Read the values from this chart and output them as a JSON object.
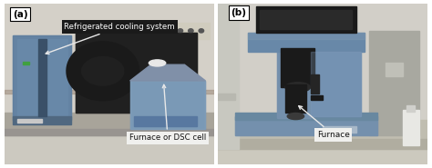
{
  "figsize": [
    4.74,
    1.85
  ],
  "dpi": 100,
  "bg_color": "#ffffff",
  "wall_color_a": "#d8d4cc",
  "floor_color_a": "#b8b4a8",
  "wall_color_b": "#d0cdc8",
  "floor_color_b": "#c8c4b8",
  "blue_device": "#6e84a0",
  "blue_device_dark": "#4a6080",
  "black_box": "#1a1a1a",
  "black_box2": "#252525",
  "label_a": "(a)",
  "label_b": "(b)",
  "ann_cooling": "Refrigerated cooling system",
  "ann_furnace_dsc": "Furnace or DSC cell",
  "ann_furnace": "Furnace",
  "ann_cooling_fc": "#ffffff",
  "ann_cooling_bg": "#1a1a1a",
  "ann_furnace_dsc_fc": "#111111",
  "ann_furnace_dsc_bg": "#f0f0ee",
  "ann_furnace_fc": "#111111",
  "ann_furnace_bg": "#f0f0ee",
  "border_color": "#888888",
  "arrow_color_w": "#e8e8e8",
  "fontsize_label": 7.5,
  "fontsize_ann": 6.2
}
